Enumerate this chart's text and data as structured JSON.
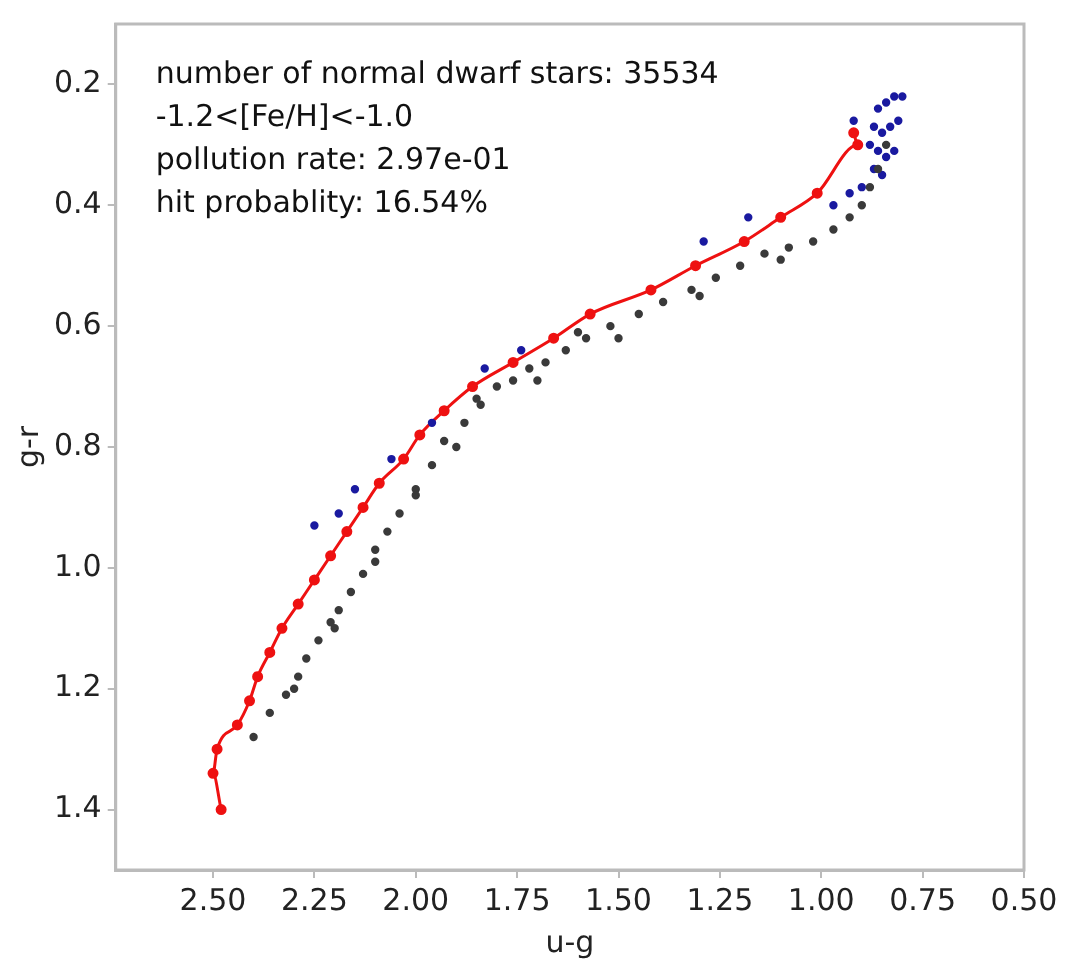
{
  "chart_data": {
    "type": "scatter",
    "xlabel": "u-g",
    "ylabel": "g-r",
    "annotations": [
      "number of normal dwarf stars: 35534",
      "-1.2<[Fe/H]<-1.0",
      "pollution rate: 2.97e-01",
      "hit probablity: 16.54%"
    ],
    "xlim": [
      2.74,
      0.5
    ],
    "ylim": [
      1.5,
      0.1
    ],
    "xticks": [
      {
        "value": 2.5,
        "label": "2.50"
      },
      2.25,
      {
        "value": 2,
        "label": "2.00"
      },
      1.75,
      {
        "value": 1.5,
        "label": "1.50"
      },
      1.25,
      {
        "value": 1,
        "label": "1.00"
      },
      0.75,
      {
        "value": 0.5,
        "label": "0.50"
      }
    ],
    "yticks": [
      0.2,
      0.4,
      0.6,
      0.8,
      {
        "value": 1,
        "label": "1.0"
      },
      1.2,
      1.4
    ],
    "grid": false,
    "legend": false,
    "marker": "circle",
    "series": [
      {
        "color": "#3a3a3a",
        "x": [
          0.84,
          0.86,
          0.88,
          0.9,
          0.93,
          0.97,
          1.02,
          1.08,
          1.14,
          1.2,
          1.26,
          1.32,
          1.39,
          1.45,
          1.52,
          1.58,
          1.63,
          1.68,
          1.72,
          1.76,
          1.8,
          1.84,
          1.88,
          1.93,
          1.96,
          2.0,
          2.04,
          2.07,
          2.1,
          2.13,
          2.16,
          2.19,
          2.21,
          2.24,
          2.27,
          2.29,
          2.32,
          2.36,
          2.4,
          1.1,
          1.3,
          1.5,
          1.7,
          1.9,
          2.0,
          2.1,
          2.2,
          2.3,
          1.6,
          1.85
        ],
        "values": [
          0.3,
          0.34,
          0.37,
          0.4,
          0.42,
          0.44,
          0.46,
          0.47,
          0.48,
          0.5,
          0.52,
          0.54,
          0.56,
          0.58,
          0.6,
          0.62,
          0.64,
          0.66,
          0.67,
          0.69,
          0.7,
          0.73,
          0.76,
          0.79,
          0.83,
          0.87,
          0.91,
          0.94,
          0.97,
          1.01,
          1.04,
          1.07,
          1.09,
          1.12,
          1.15,
          1.18,
          1.21,
          1.24,
          1.28,
          0.49,
          0.55,
          0.62,
          0.69,
          0.8,
          0.88,
          0.99,
          1.1,
          1.2,
          0.61,
          0.72
        ]
      },
      {
        "color": "#1a1aa0",
        "x": [
          0.8,
          0.82,
          0.84,
          0.86,
          0.81,
          0.83,
          0.85,
          0.87,
          0.82,
          0.84,
          0.86,
          0.88,
          0.85,
          0.87,
          0.9,
          0.93,
          0.97,
          0.92,
          1.18,
          1.29,
          1.74,
          1.83,
          1.96,
          2.06,
          2.15,
          2.19,
          2.25
        ],
        "values": [
          0.22,
          0.22,
          0.23,
          0.24,
          0.26,
          0.27,
          0.28,
          0.27,
          0.31,
          0.32,
          0.31,
          0.3,
          0.35,
          0.34,
          0.37,
          0.38,
          0.4,
          0.26,
          0.42,
          0.46,
          0.64,
          0.67,
          0.76,
          0.82,
          0.87,
          0.91,
          0.93
        ]
      },
      {
        "type": "line",
        "color": "#ee1111",
        "line_style": "solid",
        "x": [
          0.92,
          0.91,
          1.01,
          1.1,
          1.19,
          1.31,
          1.42,
          1.57,
          1.66,
          1.76,
          1.86,
          1.93,
          1.99,
          2.03,
          2.09,
          2.13,
          2.17,
          2.21,
          2.25,
          2.29,
          2.33,
          2.36,
          2.39,
          2.41,
          2.44,
          2.49,
          2.5,
          2.48
        ],
        "values": [
          0.28,
          0.3,
          0.38,
          0.42,
          0.46,
          0.5,
          0.54,
          0.58,
          0.62,
          0.66,
          0.7,
          0.74,
          0.78,
          0.82,
          0.86,
          0.9,
          0.94,
          0.98,
          1.02,
          1.06,
          1.1,
          1.14,
          1.18,
          1.22,
          1.26,
          1.3,
          1.34,
          1.4
        ]
      }
    ]
  }
}
